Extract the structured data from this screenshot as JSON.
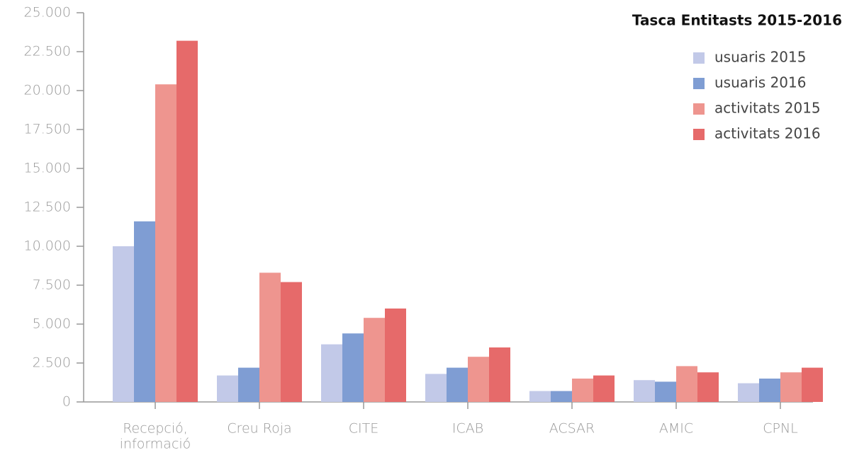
{
  "chart_data": {
    "type": "bar",
    "title": "Tasca Entitasts 2015-2016",
    "categories": [
      [
        "Recepció,",
        "informació"
      ],
      "Creu Roja",
      "CITE",
      "ICAB",
      "ACSAR",
      "AMIC",
      "CPNL"
    ],
    "series": [
      {
        "name": "usuaris 2015",
        "color": "#c2c9e8",
        "values": [
          10000,
          1700,
          3700,
          1800,
          700,
          1400,
          1200
        ]
      },
      {
        "name": "usuaris 2016",
        "color": "#7f9dd3",
        "values": [
          11600,
          2200,
          4400,
          2200,
          700,
          1300,
          1500
        ]
      },
      {
        "name": "activitats 2015",
        "color": "#ee958f",
        "values": [
          20400,
          8300,
          5400,
          2900,
          1500,
          2300,
          1900
        ]
      },
      {
        "name": "activitats 2016",
        "color": "#e66a6a",
        "values": [
          23200,
          7700,
          6000,
          3500,
          1700,
          1900,
          2200
        ]
      }
    ],
    "ylim": [
      0,
      25000
    ],
    "yticks": [
      0,
      {
        "value": 2500,
        "label": "2.500"
      },
      {
        "value": 5000,
        "label": "5.000"
      },
      {
        "value": 7500,
        "label": "7.500"
      },
      {
        "value": 10000,
        "label": "10.000"
      },
      {
        "value": 12500,
        "label": "12.500"
      },
      {
        "value": 15000,
        "label": "15.000"
      },
      {
        "value": 17500,
        "label": "17.500"
      },
      {
        "value": 20000,
        "label": "20.000"
      },
      {
        "value": 22500,
        "label": "22.500"
      },
      {
        "value": 25000,
        "label": "25.000"
      }
    ],
    "legend": "top-right",
    "grid": false
  }
}
